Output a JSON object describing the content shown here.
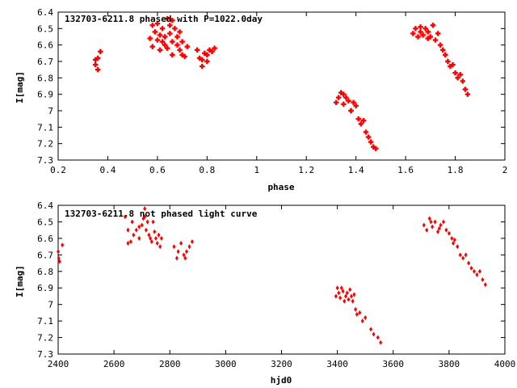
{
  "chart_data": [
    {
      "type": "scatter",
      "title": "132703-6211.8 phased with P=1022.0day",
      "xlabel": "phase",
      "ylabel": "I[mag]",
      "xlim": [
        0.2,
        2.0
      ],
      "ylim": [
        7.3,
        6.4
      ],
      "y_inverted": true,
      "grid": false,
      "marker_color": "#ff0000",
      "xticks": [
        "0.2",
        "0.4",
        "0.6",
        "0.8",
        "1",
        "1.2",
        "1.4",
        "1.6",
        "1.8",
        "2"
      ],
      "yticks": [
        "6.4",
        "6.5",
        "6.6",
        "6.7",
        "6.8",
        "6.9",
        "7",
        "7.1",
        "7.2",
        "7.3"
      ],
      "series": [
        {
          "x": [
            0.35,
            0.35,
            0.36,
            0.36,
            0.37,
            0.57,
            0.58,
            0.59,
            0.6,
            0.6,
            0.61,
            0.62,
            0.62,
            0.63,
            0.64,
            0.64,
            0.65,
            0.65,
            0.66,
            0.66,
            0.67,
            0.68,
            0.68,
            0.69,
            0.7,
            0.7,
            0.71,
            0.72,
            0.58,
            0.61,
            0.63,
            0.66,
            0.69,
            0.76,
            0.77,
            0.78,
            0.79,
            0.8,
            0.81,
            0.82,
            0.83,
            0.8,
            0.78,
            1.32,
            1.33,
            1.34,
            1.35,
            1.36,
            1.37,
            1.38,
            1.39,
            1.4,
            1.41,
            1.42,
            1.43,
            1.44,
            1.45,
            1.46,
            1.47,
            1.48,
            1.35,
            1.38,
            1.63,
            1.64,
            1.65,
            1.66,
            1.67,
            1.68,
            1.69,
            1.7,
            1.71,
            1.72,
            1.73,
            1.74,
            1.75,
            1.76,
            1.77,
            1.78,
            1.79,
            1.8,
            1.81,
            1.82,
            1.83,
            1.84,
            1.85,
            1.66,
            1.69
          ],
          "y": [
            6.69,
            6.72,
            6.75,
            6.68,
            6.64,
            6.56,
            6.61,
            6.52,
            6.47,
            6.57,
            6.63,
            6.5,
            6.58,
            6.55,
            6.44,
            6.62,
            6.48,
            6.53,
            6.66,
            6.58,
            6.5,
            6.6,
            6.55,
            6.63,
            6.58,
            6.66,
            6.67,
            6.61,
            6.48,
            6.54,
            6.6,
            6.45,
            6.52,
            6.63,
            6.68,
            6.73,
            6.65,
            6.7,
            6.63,
            6.64,
            6.62,
            6.66,
            6.69,
            6.95,
            6.92,
            6.89,
            6.96,
            6.92,
            6.94,
            7.0,
            6.95,
            6.97,
            7.05,
            7.08,
            7.06,
            7.13,
            7.16,
            7.19,
            7.22,
            7.23,
            6.9,
            7.0,
            6.53,
            6.5,
            6.55,
            6.52,
            6.54,
            6.5,
            6.52,
            6.55,
            6.48,
            6.57,
            6.53,
            6.6,
            6.63,
            6.66,
            6.7,
            6.73,
            6.72,
            6.77,
            6.8,
            6.78,
            6.82,
            6.87,
            6.9,
            6.49,
            6.56
          ]
        }
      ]
    },
    {
      "type": "scatter",
      "title": "132703-6211.8 not phased light curve",
      "xlabel": "hjd0",
      "ylabel": "I[mag]",
      "xlim": [
        2400,
        4000
      ],
      "ylim": [
        7.3,
        6.4
      ],
      "y_inverted": true,
      "grid": false,
      "marker_color": "#ff0000",
      "xticks": [
        "2400",
        "2600",
        "2800",
        "3000",
        "3200",
        "3400",
        "3600",
        "3800",
        "4000"
      ],
      "yticks": [
        "6.4",
        "6.5",
        "6.6",
        "6.7",
        "6.8",
        "6.9",
        "7",
        "7.1",
        "7.2",
        "7.3"
      ],
      "series": [
        {
          "x": [
            2400,
            2402,
            2405,
            2415,
            2640,
            2650,
            2660,
            2665,
            2670,
            2680,
            2690,
            2700,
            2705,
            2710,
            2715,
            2720,
            2725,
            2730,
            2735,
            2740,
            2745,
            2750,
            2755,
            2760,
            2765,
            2770,
            2650,
            2690,
            2710,
            2815,
            2825,
            2840,
            2850,
            2860,
            2870,
            2880,
            2830,
            2855,
            3395,
            3400,
            3405,
            3410,
            3415,
            3420,
            3425,
            3430,
            3435,
            3440,
            3445,
            3450,
            3455,
            3460,
            3465,
            3470,
            3480,
            3490,
            3500,
            3520,
            3530,
            3545,
            3555,
            3710,
            3720,
            3730,
            3740,
            3750,
            3760,
            3770,
            3780,
            3790,
            3800,
            3810,
            3815,
            3820,
            3830,
            3840,
            3850,
            3860,
            3870,
            3880,
            3890,
            3900,
            3910,
            3920,
            3930,
            3735,
            3765
          ],
          "y": [
            6.68,
            6.72,
            6.74,
            6.64,
            6.47,
            6.55,
            6.62,
            6.5,
            6.58,
            6.55,
            6.6,
            6.52,
            6.48,
            6.42,
            6.55,
            6.5,
            6.58,
            6.6,
            6.62,
            6.5,
            6.56,
            6.6,
            6.63,
            6.58,
            6.65,
            6.6,
            6.63,
            6.53,
            6.47,
            6.65,
            6.72,
            6.63,
            6.7,
            6.68,
            6.65,
            6.62,
            6.68,
            6.72,
            6.95,
            6.9,
            6.93,
            6.96,
            6.9,
            6.92,
            6.98,
            6.95,
            6.93,
            6.97,
            6.91,
            6.95,
            6.98,
            6.94,
            7.03,
            7.06,
            7.05,
            7.1,
            7.08,
            7.15,
            7.18,
            7.2,
            7.23,
            6.52,
            6.55,
            6.48,
            6.53,
            6.5,
            6.56,
            6.52,
            6.5,
            6.55,
            6.57,
            6.6,
            6.63,
            6.61,
            6.65,
            6.7,
            6.72,
            6.7,
            6.75,
            6.78,
            6.8,
            6.82,
            6.8,
            6.85,
            6.88,
            6.5,
            6.54
          ]
        }
      ]
    }
  ]
}
